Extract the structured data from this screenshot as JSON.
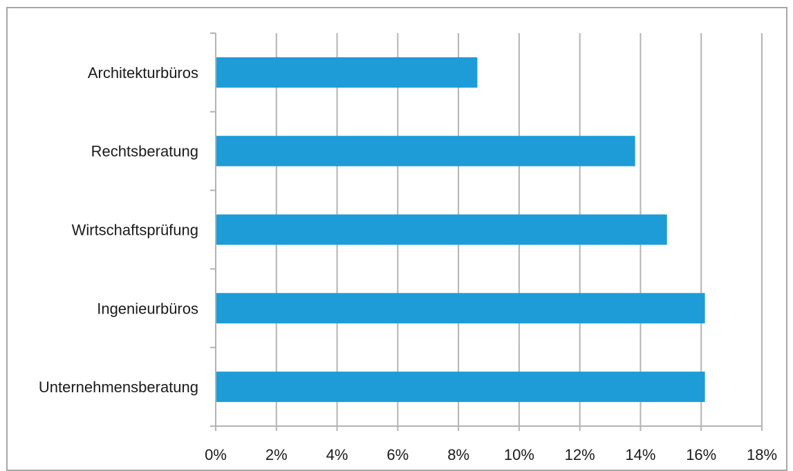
{
  "chart_data": {
    "type": "bar",
    "orientation": "horizontal",
    "categories": [
      "Architekturbüros",
      "Rechtsberatung",
      "Wirtschaftsprüfung",
      "Ingenieurbüros",
      "Unternehmensberatung"
    ],
    "values": [
      8.6,
      13.8,
      14.85,
      16.1,
      16.1
    ],
    "xlim": [
      0,
      18
    ],
    "x_ticks": [
      "0%",
      "2%",
      "4%",
      "6%",
      "8%",
      "10%",
      "12%",
      "14%",
      "16%",
      "18%"
    ],
    "grid": "vertical",
    "bar_color": "#1e9cd7",
    "grid_color": "#b3b3b3",
    "legend": "none"
  }
}
